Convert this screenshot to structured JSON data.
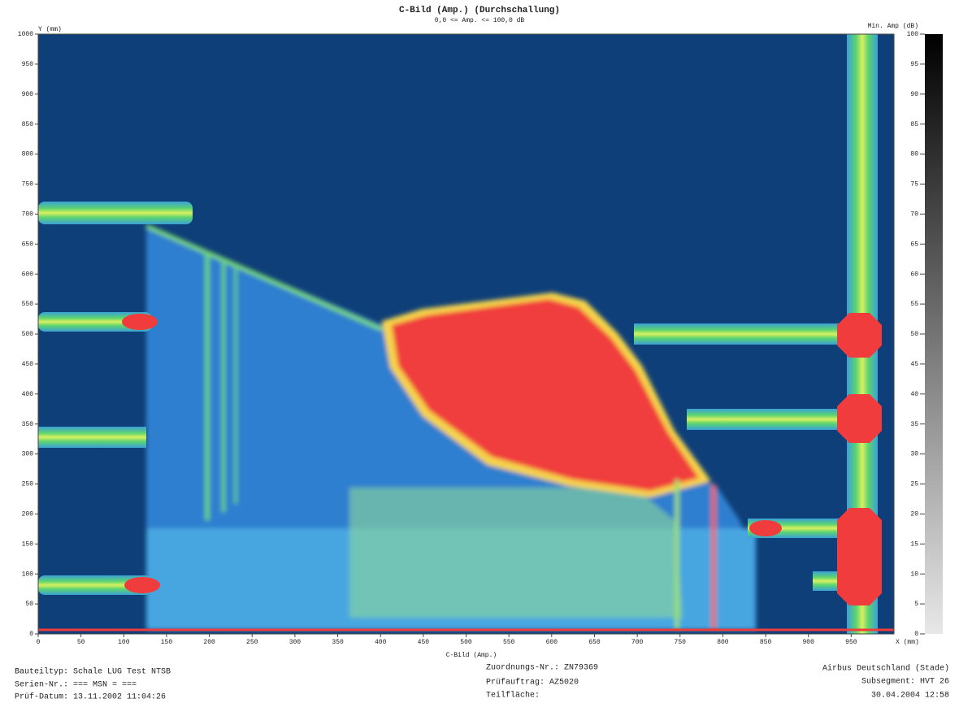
{
  "chart_data": {
    "type": "heatmap",
    "title": "C-Bild (Amp.) (Durchschallung)",
    "subtitle": "0,0 <= Amp. <= 100,0 dB",
    "xlabel": "X (mm)",
    "ylabel": "Y (mm)",
    "bottom_label": "C-Bild (Amp.)",
    "xlim": [
      0,
      1000
    ],
    "xticks": [
      0,
      50,
      100,
      150,
      200,
      250,
      300,
      350,
      400,
      450,
      500,
      550,
      600,
      650,
      700,
      750,
      800,
      850,
      900,
      950
    ],
    "ylim": [
      0,
      1000
    ],
    "yticks": [
      0,
      50,
      100,
      150,
      200,
      250,
      300,
      350,
      400,
      450,
      500,
      550,
      600,
      650,
      700,
      750,
      800,
      850,
      900,
      950,
      1000
    ],
    "colorbar": {
      "label": "Min. Amp (dB)",
      "lim": [
        0,
        100
      ],
      "ticks": [
        0,
        5,
        10,
        15,
        20,
        25,
        30,
        35,
        40,
        45,
        50,
        55,
        60,
        65,
        70,
        75,
        80,
        85,
        90,
        95,
        100
      ],
      "colors": [
        "#e8e8e8",
        "#000000"
      ]
    }
  },
  "footer": {
    "left": [
      "Bauteiltyp: Schale LUG Test NTSB",
      "Serien-Nr.: === MSN = ===",
      "Prüf-Datum: 13.11.2002 11:04:26"
    ],
    "center": [
      "Zuordnungs-Nr.: ZN79369",
      "Prüfauftrag: AZ5020",
      "Teilfläche:"
    ],
    "right": [
      "Airbus Deutschland (Stade)",
      "Subsegment: HVT 26",
      "30.04.2004 12:58"
    ]
  }
}
